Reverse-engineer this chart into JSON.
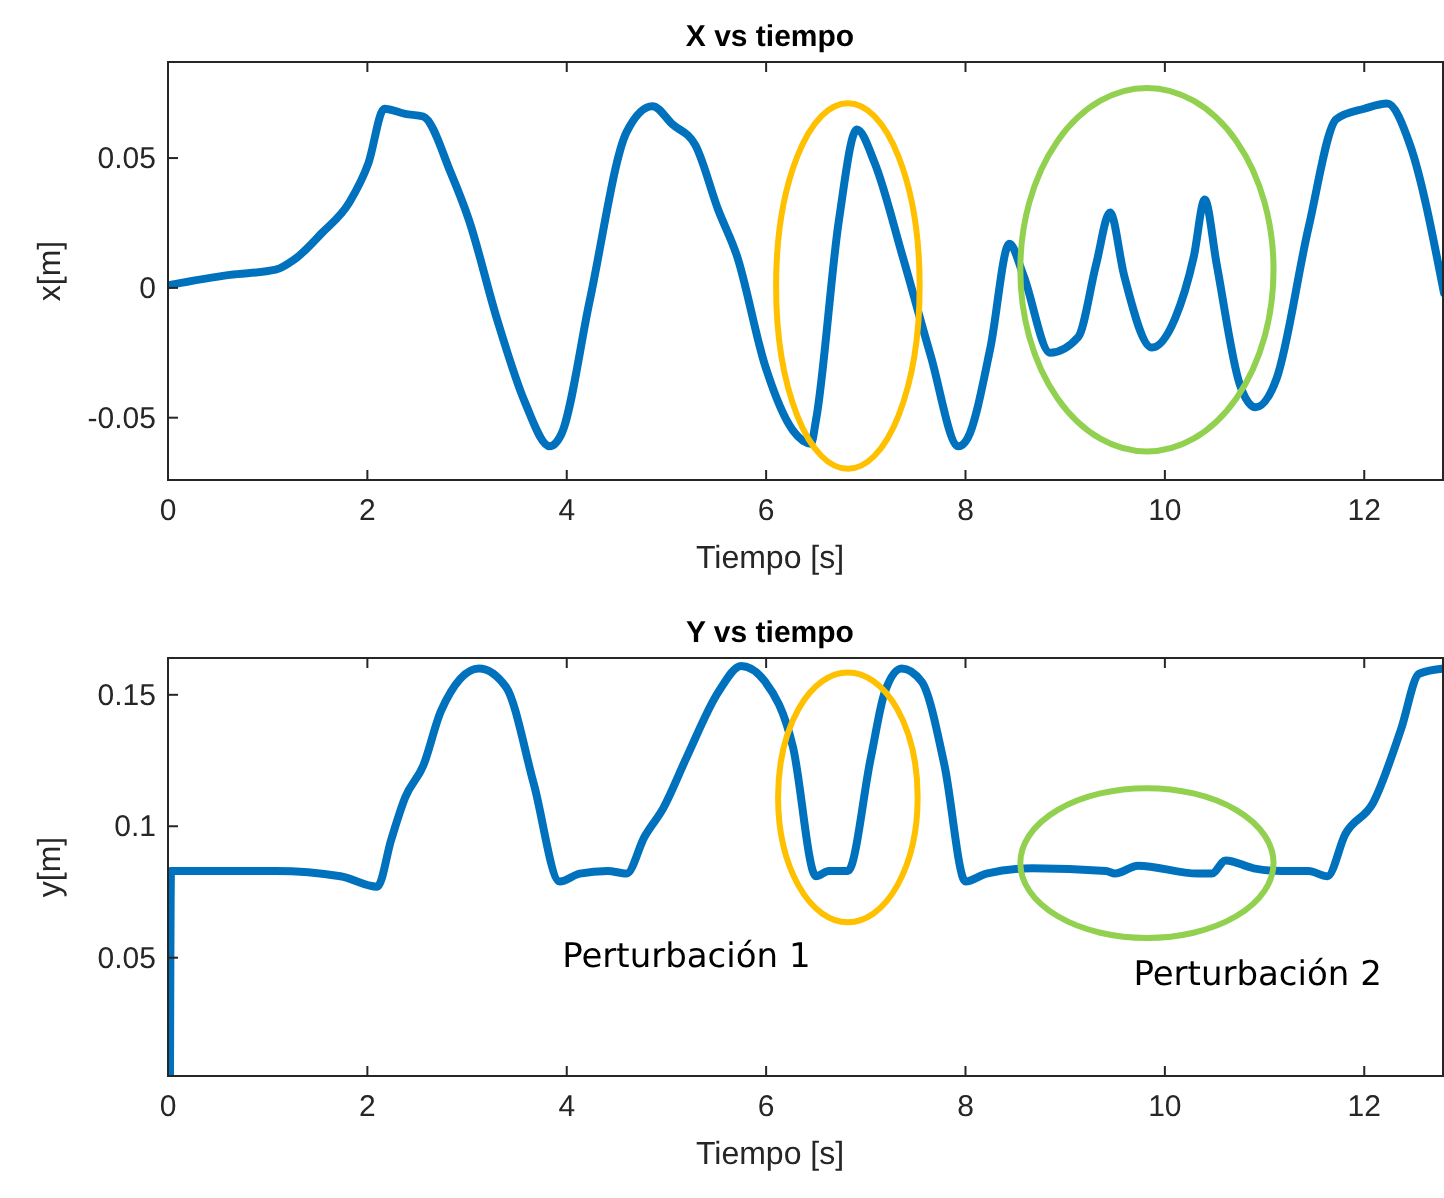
{
  "chart_data": [
    {
      "type": "line",
      "title": "X vs tiempo",
      "xlabel": "Tiempo [s]",
      "ylabel": "x[m]",
      "xlim": [
        0,
        12.8
      ],
      "xticks": [
        0,
        2,
        4,
        6,
        8,
        10,
        12
      ],
      "ylim": [
        -0.074,
        0.087
      ],
      "yticks": [
        -0.05,
        0,
        0.05
      ],
      "grid": false,
      "series": [
        {
          "color": "#0072bd",
          "x": [
            0,
            0.62,
            1.08,
            1.27,
            1.54,
            1.82,
            2.01,
            2.17,
            2.38,
            2.56,
            2.84,
            3.02,
            3.3,
            3.58,
            3.83,
            3.95,
            4.23,
            4.6,
            4.86,
            5.06,
            5.29,
            5.52,
            5.71,
            5.99,
            6.27,
            6.45,
            6.5,
            6.73,
            6.91,
            7.09,
            7.37,
            7.65,
            7.93,
            8.02,
            8.25,
            8.44,
            8.58,
            8.85,
            9.13,
            9.31,
            9.45,
            9.59,
            9.87,
            10.1,
            10.29,
            10.4,
            10.52,
            10.75,
            10.91,
            11.12,
            11.44,
            11.72,
            12,
            12.23,
            12.46,
            12.8
          ],
          "values": [
            0.001,
            0.005,
            0.007,
            0.011,
            0.021,
            0.033,
            0.048,
            0.069,
            0.067,
            0.066,
            0.044,
            0.026,
            -0.012,
            -0.044,
            -0.061,
            -0.056,
            -0.005,
            0.06,
            0.07,
            0.063,
            0.055,
            0.03,
            0.012,
            -0.03,
            -0.055,
            -0.06,
            -0.051,
            0.026,
            0.061,
            0.048,
            0.012,
            -0.026,
            -0.061,
            -0.058,
            -0.023,
            0.017,
            0.005,
            -0.025,
            -0.019,
            0.009,
            0.029,
            0.005,
            -0.023,
            -0.012,
            0.012,
            0.034,
            0.009,
            -0.037,
            -0.046,
            -0.035,
            0.023,
            0.065,
            0.069,
            0.071,
            0.055,
            -0.002
          ]
        }
      ]
    },
    {
      "type": "line",
      "title": "Y vs tiempo",
      "xlabel": "Tiempo [s]",
      "ylabel": "y[m]",
      "xlim": [
        0,
        12.8
      ],
      "xticks": [
        0,
        2,
        4,
        6,
        8,
        10,
        12
      ],
      "ylim": [
        0.005,
        0.164
      ],
      "yticks": [
        0.05,
        0.1,
        0.15
      ],
      "grid": false,
      "annotations": [
        "Perturbación 1",
        "Perturbación 2"
      ],
      "series": [
        {
          "color": "#0072bd",
          "x": [
            0.02,
            0.03,
            1.08,
            1.73,
            2.1,
            2.24,
            2.38,
            2.56,
            2.74,
            3.12,
            3.39,
            3.67,
            3.93,
            4.13,
            4.41,
            4.6,
            4.78,
            4.97,
            5.2,
            5.52,
            5.75,
            5.99,
            6.27,
            6.5,
            6.63,
            6.82,
            7.05,
            7.19,
            7.36,
            7.56,
            7.79,
            8,
            8.21,
            8.67,
            9.41,
            9.5,
            9.73,
            10.33,
            10.47,
            10.61,
            10.89,
            11.17,
            11.44,
            11.63,
            11.81,
            12.09,
            12.37,
            12.55,
            12.8
          ],
          "values": [
            0.005,
            0.083,
            0.083,
            0.081,
            0.077,
            0.095,
            0.111,
            0.123,
            0.144,
            0.16,
            0.153,
            0.116,
            0.079,
            0.082,
            0.083,
            0.082,
            0.096,
            0.107,
            0.126,
            0.151,
            0.161,
            0.155,
            0.13,
            0.081,
            0.083,
            0.083,
            0.126,
            0.151,
            0.16,
            0.155,
            0.123,
            0.079,
            0.082,
            0.084,
            0.083,
            0.082,
            0.085,
            0.082,
            0.082,
            0.087,
            0.084,
            0.083,
            0.083,
            0.081,
            0.097,
            0.109,
            0.137,
            0.158,
            0.16
          ]
        }
      ]
    }
  ]
}
